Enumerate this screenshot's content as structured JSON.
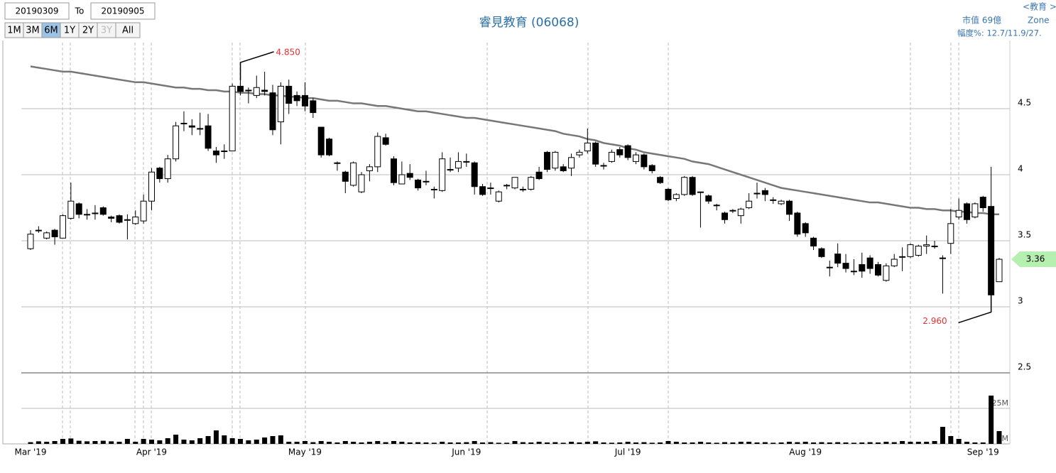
{
  "controls": {
    "from": "20190309",
    "to_label": "To",
    "to": "20190905",
    "ranges": [
      "1M",
      "3M",
      "6M",
      "1Y",
      "2Y",
      "3Y",
      "All"
    ],
    "active": "6M",
    "disabled": "3Y"
  },
  "info": [
    "<教育 >",
    "市值 69億",
    "Zone",
    "幅度%: 12.7/11.9/27."
  ],
  "chart_data": {
    "type": "candlestick",
    "title": "睿見教育 (06068)",
    "categories": [
      "Mar '19",
      null,
      null,
      null,
      null,
      null,
      null,
      null,
      null,
      null,
      null,
      null,
      null,
      null,
      null,
      "Apr '19",
      null,
      null,
      null,
      null,
      null,
      null,
      null,
      null,
      null,
      null,
      null,
      null,
      null,
      null,
      null,
      null,
      null,
      null,
      "May '19",
      null,
      null,
      null,
      null,
      null,
      null,
      null,
      null,
      null,
      null,
      null,
      null,
      null,
      null,
      null,
      null,
      null,
      null,
      null,
      "Jun '19",
      null,
      null,
      null,
      null,
      null,
      null,
      null,
      null,
      null,
      null,
      null,
      null,
      null,
      null,
      null,
      null,
      null,
      null,
      null,
      "Jul '19",
      null,
      null,
      null,
      null,
      null,
      null,
      null,
      null,
      null,
      null,
      null,
      null,
      null,
      null,
      null,
      null,
      null,
      null,
      null,
      null,
      null,
      "Aug '19",
      null,
      null,
      null,
      null,
      null,
      null,
      null,
      null,
      null,
      null,
      null,
      null,
      null,
      null,
      null,
      null,
      null,
      null,
      null,
      null,
      null,
      "Sep '19",
      null,
      null
    ],
    "ohlc": [
      [
        3.44,
        3.58,
        3.43,
        3.55
      ],
      [
        3.58,
        3.61,
        3.56,
        3.58
      ],
      [
        3.52,
        3.57,
        3.51,
        3.56
      ],
      [
        3.58,
        3.59,
        3.47,
        3.53
      ],
      [
        3.52,
        3.7,
        3.52,
        3.69
      ],
      [
        3.67,
        3.94,
        3.66,
        3.8
      ],
      [
        3.78,
        3.79,
        3.67,
        3.7
      ],
      [
        3.7,
        3.74,
        3.66,
        3.7
      ],
      [
        3.71,
        3.77,
        3.66,
        3.71
      ],
      [
        3.75,
        3.76,
        3.69,
        3.7
      ],
      [
        3.68,
        3.69,
        3.64,
        3.67
      ],
      [
        3.69,
        3.7,
        3.63,
        3.64
      ],
      [
        3.66,
        3.7,
        3.51,
        3.66
      ],
      [
        3.63,
        3.73,
        3.62,
        3.68
      ],
      [
        3.65,
        3.85,
        3.63,
        3.8
      ],
      [
        3.8,
        4.05,
        3.73,
        4.02
      ],
      [
        4.05,
        4.06,
        3.94,
        3.97
      ],
      [
        3.97,
        4.15,
        3.94,
        4.12
      ],
      [
        4.12,
        4.4,
        4.1,
        4.37
      ],
      [
        4.39,
        4.48,
        4.33,
        4.39
      ],
      [
        4.37,
        4.42,
        4.3,
        4.36
      ],
      [
        4.35,
        4.47,
        4.3,
        4.35
      ],
      [
        4.37,
        4.46,
        4.18,
        4.2
      ],
      [
        4.18,
        4.21,
        4.09,
        4.15
      ],
      [
        4.18,
        4.23,
        4.12,
        4.18
      ],
      [
        4.18,
        4.69,
        4.18,
        4.67
      ],
      [
        4.67,
        4.85,
        4.6,
        4.63
      ],
      [
        4.64,
        4.66,
        4.54,
        4.64
      ],
      [
        4.6,
        4.75,
        4.58,
        4.66
      ],
      [
        4.64,
        4.78,
        4.6,
        4.63
      ],
      [
        4.62,
        4.68,
        4.3,
        4.34
      ],
      [
        4.4,
        4.7,
        4.23,
        4.67
      ],
      [
        4.67,
        4.72,
        4.46,
        4.54
      ],
      [
        4.6,
        4.63,
        4.52,
        4.56
      ],
      [
        4.6,
        4.7,
        4.48,
        4.52
      ],
      [
        4.56,
        4.58,
        4.43,
        4.47
      ],
      [
        4.36,
        4.36,
        4.13,
        4.15
      ],
      [
        4.27,
        4.28,
        4.14,
        4.15
      ],
      [
        4.09,
        4.1,
        4.03,
        4.09
      ],
      [
        4.02,
        4.03,
        3.86,
        3.95
      ],
      [
        3.92,
        4.1,
        3.91,
        4.09
      ],
      [
        3.87,
        4.02,
        3.86,
        4.0
      ],
      [
        4.03,
        4.08,
        3.95,
        4.06
      ],
      [
        4.06,
        4.32,
        4.02,
        4.29
      ],
      [
        4.28,
        4.31,
        4.22,
        4.23
      ],
      [
        4.12,
        4.14,
        3.92,
        3.94
      ],
      [
        3.93,
        4.1,
        3.93,
        4.0
      ],
      [
        4.01,
        4.08,
        3.96,
        3.98
      ],
      [
        3.96,
        3.97,
        3.88,
        3.9
      ],
      [
        3.95,
        4.03,
        3.92,
        3.95
      ],
      [
        3.89,
        3.91,
        3.82,
        3.89
      ],
      [
        3.88,
        4.17,
        3.87,
        4.12
      ],
      [
        4.04,
        4.13,
        4.02,
        4.04
      ],
      [
        4.05,
        4.17,
        4.02,
        4.1
      ],
      [
        4.1,
        4.16,
        4.06,
        4.1
      ],
      [
        4.09,
        4.1,
        3.85,
        3.91
      ],
      [
        3.91,
        3.93,
        3.84,
        3.85
      ],
      [
        3.9,
        3.94,
        3.85,
        3.9
      ],
      [
        3.8,
        3.88,
        3.79,
        3.87
      ],
      [
        3.92,
        3.93,
        3.89,
        3.92
      ],
      [
        3.9,
        3.98,
        3.89,
        3.98
      ],
      [
        3.89,
        3.91,
        3.87,
        3.89
      ],
      [
        3.89,
        3.99,
        3.88,
        3.98
      ],
      [
        4.02,
        4.06,
        3.96,
        3.97
      ],
      [
        4.17,
        4.18,
        4.02,
        4.04
      ],
      [
        4.05,
        4.18,
        4.03,
        4.17
      ],
      [
        4.06,
        4.08,
        4.02,
        4.03
      ],
      [
        4.05,
        4.16,
        3.99,
        4.13
      ],
      [
        4.15,
        4.19,
        4.13,
        4.17
      ],
      [
        4.18,
        4.35,
        4.16,
        4.24
      ],
      [
        4.24,
        4.25,
        4.06,
        4.08
      ],
      [
        4.07,
        4.09,
        4.04,
        4.07
      ],
      [
        4.1,
        4.19,
        4.09,
        4.17
      ],
      [
        4.19,
        4.21,
        4.13,
        4.15
      ],
      [
        4.22,
        4.23,
        4.11,
        4.13
      ],
      [
        4.1,
        4.17,
        4.08,
        4.15
      ],
      [
        4.15,
        4.16,
        4.04,
        4.06
      ],
      [
        4.07,
        4.08,
        4.01,
        4.03
      ],
      [
        3.98,
        3.99,
        3.93,
        3.94
      ],
      [
        3.89,
        3.9,
        3.8,
        3.81
      ],
      [
        3.82,
        3.86,
        3.8,
        3.85
      ],
      [
        3.85,
        3.99,
        3.84,
        3.98
      ],
      [
        3.98,
        3.99,
        3.84,
        3.85
      ],
      [
        3.87,
        3.87,
        3.6,
        3.87
      ],
      [
        3.84,
        3.85,
        3.78,
        3.8
      ],
      [
        3.77,
        3.78,
        3.73,
        3.77
      ],
      [
        3.71,
        3.72,
        3.63,
        3.66
      ],
      [
        3.73,
        3.74,
        3.71,
        3.73
      ],
      [
        3.69,
        3.75,
        3.63,
        3.74
      ],
      [
        3.75,
        3.86,
        3.74,
        3.8
      ],
      [
        3.86,
        3.94,
        3.82,
        3.86
      ],
      [
        3.88,
        3.9,
        3.8,
        3.85
      ],
      [
        3.81,
        3.83,
        3.78,
        3.81
      ],
      [
        3.78,
        3.81,
        3.77,
        3.8
      ],
      [
        3.8,
        3.81,
        3.65,
        3.7
      ],
      [
        3.71,
        3.72,
        3.53,
        3.55
      ],
      [
        3.63,
        3.64,
        3.53,
        3.56
      ],
      [
        3.52,
        3.53,
        3.43,
        3.46
      ],
      [
        3.44,
        3.45,
        3.37,
        3.38
      ],
      [
        3.3,
        3.35,
        3.23,
        3.3
      ],
      [
        3.4,
        3.48,
        3.3,
        3.33
      ],
      [
        3.33,
        3.4,
        3.26,
        3.29
      ],
      [
        3.27,
        3.36,
        3.24,
        3.27
      ],
      [
        3.32,
        3.41,
        3.22,
        3.27
      ],
      [
        3.37,
        3.39,
        3.25,
        3.29
      ],
      [
        3.32,
        3.34,
        3.23,
        3.24
      ],
      [
        3.2,
        3.33,
        3.19,
        3.31
      ],
      [
        3.31,
        3.4,
        3.3,
        3.36
      ],
      [
        3.38,
        3.45,
        3.27,
        3.38
      ],
      [
        3.38,
        3.48,
        3.37,
        3.47
      ],
      [
        3.39,
        3.47,
        3.38,
        3.46
      ],
      [
        3.46,
        3.54,
        3.4,
        3.47
      ],
      [
        3.46,
        3.5,
        3.44,
        3.46
      ],
      [
        3.37,
        3.39,
        3.1,
        3.37
      ],
      [
        3.48,
        3.74,
        3.4,
        3.63
      ],
      [
        3.68,
        3.82,
        3.66,
        3.73
      ],
      [
        3.78,
        3.79,
        3.63,
        3.66
      ],
      [
        3.68,
        3.79,
        3.67,
        3.78
      ],
      [
        3.83,
        3.84,
        3.72,
        3.75
      ],
      [
        3.76,
        4.06,
        2.96,
        3.09
      ],
      [
        3.19,
        3.37,
        3.19,
        3.36
      ]
    ],
    "ma": {
      "color": "#777777",
      "values": [
        4.82,
        4.81,
        4.8,
        4.79,
        4.78,
        4.78,
        4.77,
        4.76,
        4.75,
        4.74,
        4.73,
        4.72,
        4.71,
        4.7,
        4.7,
        4.69,
        4.68,
        4.67,
        4.66,
        4.66,
        4.65,
        4.65,
        4.64,
        4.64,
        4.63,
        4.63,
        4.62,
        4.62,
        4.61,
        4.61,
        4.6,
        4.6,
        4.59,
        4.59,
        4.58,
        4.58,
        4.57,
        4.56,
        4.56,
        4.55,
        4.54,
        4.54,
        4.53,
        4.52,
        4.52,
        4.51,
        4.5,
        4.49,
        4.48,
        4.48,
        4.47,
        4.46,
        4.45,
        4.44,
        4.43,
        4.43,
        4.42,
        4.41,
        4.4,
        4.39,
        4.38,
        4.37,
        4.36,
        4.35,
        4.34,
        4.33,
        4.31,
        4.3,
        4.29,
        4.27,
        4.26,
        4.24,
        4.23,
        4.22,
        4.2,
        4.19,
        4.17,
        4.16,
        4.15,
        4.14,
        4.13,
        4.12,
        4.1,
        4.09,
        4.08,
        4.06,
        4.04,
        4.02,
        4.0,
        3.98,
        3.96,
        3.94,
        3.92,
        3.9,
        3.89,
        3.88,
        3.87,
        3.86,
        3.85,
        3.84,
        3.83,
        3.82,
        3.81,
        3.8,
        3.79,
        3.79,
        3.78,
        3.77,
        3.76,
        3.75,
        3.75,
        3.74,
        3.74,
        3.73,
        3.73,
        3.72,
        3.72,
        3.71,
        3.71,
        3.7,
        3.7
      ]
    },
    "volume": [
      1.2,
      1.8,
      1.5,
      2.0,
      3.5,
      3.8,
      2.2,
      1.8,
      2.0,
      2.2,
      1.8,
      1.5,
      3.5,
      1.5,
      3.5,
      3.0,
      2.5,
      4.0,
      6.5,
      3.0,
      2.5,
      4.0,
      5.5,
      9.5,
      6.0,
      4.0,
      3.5,
      2.5,
      3.0,
      4.5,
      5.5,
      6.0,
      1.5,
      1.5,
      2.0,
      1.2,
      2.0,
      1.5,
      1.0,
      2.0,
      1.5,
      1.0,
      1.5,
      2.0,
      1.2,
      2.0,
      1.5,
      1.0,
      1.2,
      1.0,
      0.8,
      1.5,
      1.0,
      1.0,
      1.2,
      2.0,
      1.0,
      1.2,
      0.8,
      0.8,
      2.0,
      1.2,
      1.0,
      1.5,
      1.0,
      1.2,
      0.8,
      1.5,
      1.0,
      1.5,
      1.8,
      1.0,
      0.8,
      1.0,
      1.5,
      1.0,
      1.2,
      0.8,
      1.0,
      2.0,
      1.5,
      1.0,
      1.0,
      1.5,
      1.0,
      0.8,
      1.2,
      1.0,
      1.5,
      1.5,
      1.0,
      1.2,
      0.8,
      1.0,
      1.5,
      1.2,
      1.5,
      1.0,
      1.2,
      1.0,
      1.2,
      1.0,
      0.8,
      1.0,
      1.2,
      1.0,
      1.5,
      1.2,
      2.0,
      1.5,
      1.5,
      1.5,
      2.0,
      12.0,
      5.5,
      3.5,
      1.5,
      1.0,
      1.0,
      34.0,
      9.0
    ],
    "ylim": [
      2.5,
      5.0
    ],
    "yticks": [
      2.5,
      3,
      3.5,
      4,
      4.5
    ],
    "vlim": [
      0,
      50
    ],
    "vticks": [
      {
        "value": 0,
        "label": "0M"
      },
      {
        "value": 25,
        "label": "25M"
      }
    ],
    "grid": true,
    "up_color": "#ffffff",
    "down_color": "#000000",
    "high_label": "4.850",
    "low_label": "2.960",
    "last_label": "3.36",
    "label_color": "#e8312f",
    "last_color": "#b6f0b0"
  }
}
